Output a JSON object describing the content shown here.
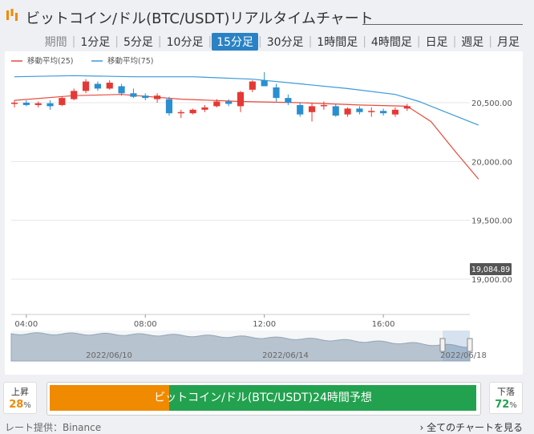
{
  "header": {
    "title": "ビットコイン/ドル(BTC/USDT)リアルタイムチャート"
  },
  "periods": {
    "label": "期間",
    "items": [
      "1分足",
      "5分足",
      "10分足",
      "15分足",
      "30分足",
      "1時間足",
      "4時間足",
      "日足",
      "週足",
      "月足"
    ],
    "active_index": 3
  },
  "legend": {
    "ma25": "移動平均(25)",
    "ma75": "移動平均(75)"
  },
  "colors": {
    "up": "#e53935",
    "down": "#2a8fd0",
    "ma25": "#e74c3c",
    "ma75": "#3a9ad9",
    "active": "#2a82c4",
    "vote_up": "#f08a00",
    "vote_down": "#22a24f"
  },
  "chart_data": {
    "type": "candlestick",
    "x_ticks": [
      "04:00",
      "08:00",
      "12:00",
      "16:00"
    ],
    "y_ticks": [
      "19,000.00",
      "19,500.00",
      "20,000.00",
      "20,500.00"
    ],
    "y_tick_values": [
      19000,
      19500,
      20000,
      20500
    ],
    "ylim": [
      18700,
      20800
    ],
    "x_range": [
      0,
      38
    ],
    "x_tick_positions": [
      1,
      11,
      21,
      31
    ],
    "last_price_label": "19,084.89",
    "last_price": 19084.89,
    "candles": [
      {
        "t": 0,
        "o": 20490,
        "h": 20520,
        "l": 20460,
        "c": 20500
      },
      {
        "t": 1,
        "o": 20500,
        "h": 20520,
        "l": 20470,
        "c": 20480
      },
      {
        "t": 2,
        "o": 20480,
        "h": 20510,
        "l": 20460,
        "c": 20495
      },
      {
        "t": 3,
        "o": 20495,
        "h": 20520,
        "l": 20440,
        "c": 20470
      },
      {
        "t": 4,
        "o": 20480,
        "h": 20550,
        "l": 20470,
        "c": 20540
      },
      {
        "t": 5,
        "o": 20530,
        "h": 20620,
        "l": 20520,
        "c": 20600
      },
      {
        "t": 6,
        "o": 20600,
        "h": 20700,
        "l": 20580,
        "c": 20680
      },
      {
        "t": 7,
        "o": 20660,
        "h": 20680,
        "l": 20600,
        "c": 20620
      },
      {
        "t": 8,
        "o": 20620,
        "h": 20690,
        "l": 20610,
        "c": 20670
      },
      {
        "t": 9,
        "o": 20640,
        "h": 20660,
        "l": 20560,
        "c": 20580
      },
      {
        "t": 10,
        "o": 20580,
        "h": 20620,
        "l": 20540,
        "c": 20550
      },
      {
        "t": 11,
        "o": 20560,
        "h": 20580,
        "l": 20520,
        "c": 20540
      },
      {
        "t": 12,
        "o": 20530,
        "h": 20580,
        "l": 20500,
        "c": 20560
      },
      {
        "t": 13,
        "o": 20530,
        "h": 20550,
        "l": 20390,
        "c": 20410
      },
      {
        "t": 14,
        "o": 20410,
        "h": 20440,
        "l": 20370,
        "c": 20420
      },
      {
        "t": 15,
        "o": 20410,
        "h": 20450,
        "l": 20400,
        "c": 20440
      },
      {
        "t": 16,
        "o": 20440,
        "h": 20480,
        "l": 20420,
        "c": 20460
      },
      {
        "t": 17,
        "o": 20470,
        "h": 20530,
        "l": 20460,
        "c": 20510
      },
      {
        "t": 18,
        "o": 20510,
        "h": 20530,
        "l": 20470,
        "c": 20490
      },
      {
        "t": 19,
        "o": 20470,
        "h": 20600,
        "l": 20420,
        "c": 20590
      },
      {
        "t": 20,
        "o": 20610,
        "h": 20690,
        "l": 20590,
        "c": 20680
      },
      {
        "t": 21,
        "o": 20690,
        "h": 20760,
        "l": 20650,
        "c": 20640
      },
      {
        "t": 22,
        "o": 20630,
        "h": 20660,
        "l": 20510,
        "c": 20540
      },
      {
        "t": 23,
        "o": 20540,
        "h": 20570,
        "l": 20480,
        "c": 20500
      },
      {
        "t": 24,
        "o": 20480,
        "h": 20500,
        "l": 20380,
        "c": 20400
      },
      {
        "t": 25,
        "o": 20420,
        "h": 20500,
        "l": 20340,
        "c": 20470
      },
      {
        "t": 26,
        "o": 20480,
        "h": 20510,
        "l": 20440,
        "c": 20480
      },
      {
        "t": 27,
        "o": 20470,
        "h": 20490,
        "l": 20380,
        "c": 20390
      },
      {
        "t": 28,
        "o": 20400,
        "h": 20460,
        "l": 20380,
        "c": 20450
      },
      {
        "t": 29,
        "o": 20450,
        "h": 20470,
        "l": 20400,
        "c": 20420
      },
      {
        "t": 30,
        "o": 20420,
        "h": 20460,
        "l": 20380,
        "c": 20430
      },
      {
        "t": 31,
        "o": 20430,
        "h": 20450,
        "l": 20390,
        "c": 20410
      },
      {
        "t": 32,
        "o": 20400,
        "h": 20460,
        "l": 20380,
        "c": 20440
      },
      {
        "t": 33,
        "o": 20450,
        "h": 20490,
        "l": 20430,
        "c": 20470
      }
    ],
    "ma25": [
      [
        0,
        20520
      ],
      [
        5,
        20560
      ],
      [
        9,
        20570
      ],
      [
        14,
        20530
      ],
      [
        19,
        20510
      ],
      [
        24,
        20500
      ],
      [
        29,
        20480
      ],
      [
        33,
        20470
      ],
      [
        35,
        20340
      ],
      [
        37,
        20090
      ],
      [
        39,
        19850
      ]
    ],
    "ma75": [
      [
        0,
        20720
      ],
      [
        5,
        20730
      ],
      [
        10,
        20720
      ],
      [
        15,
        20720
      ],
      [
        20,
        20700
      ],
      [
        24,
        20660
      ],
      [
        28,
        20620
      ],
      [
        32,
        20570
      ],
      [
        34,
        20510
      ],
      [
        36,
        20430
      ],
      [
        39,
        20310
      ]
    ]
  },
  "navigator": {
    "dates": [
      "2022/06/10",
      "2022/06/14",
      "2022/06/18"
    ]
  },
  "vote": {
    "up_label": "上昇",
    "up_pct": "28",
    "up_value": 28,
    "down_label": "下落",
    "down_pct": "72",
    "down_value": 72,
    "pct_sign": "%",
    "bar_text": "ビットコイン/ドル(BTC/USDT)24時間予想"
  },
  "footer": {
    "source": "レート提供：Binance",
    "all_charts": "› 全てのチャートを見る"
  }
}
